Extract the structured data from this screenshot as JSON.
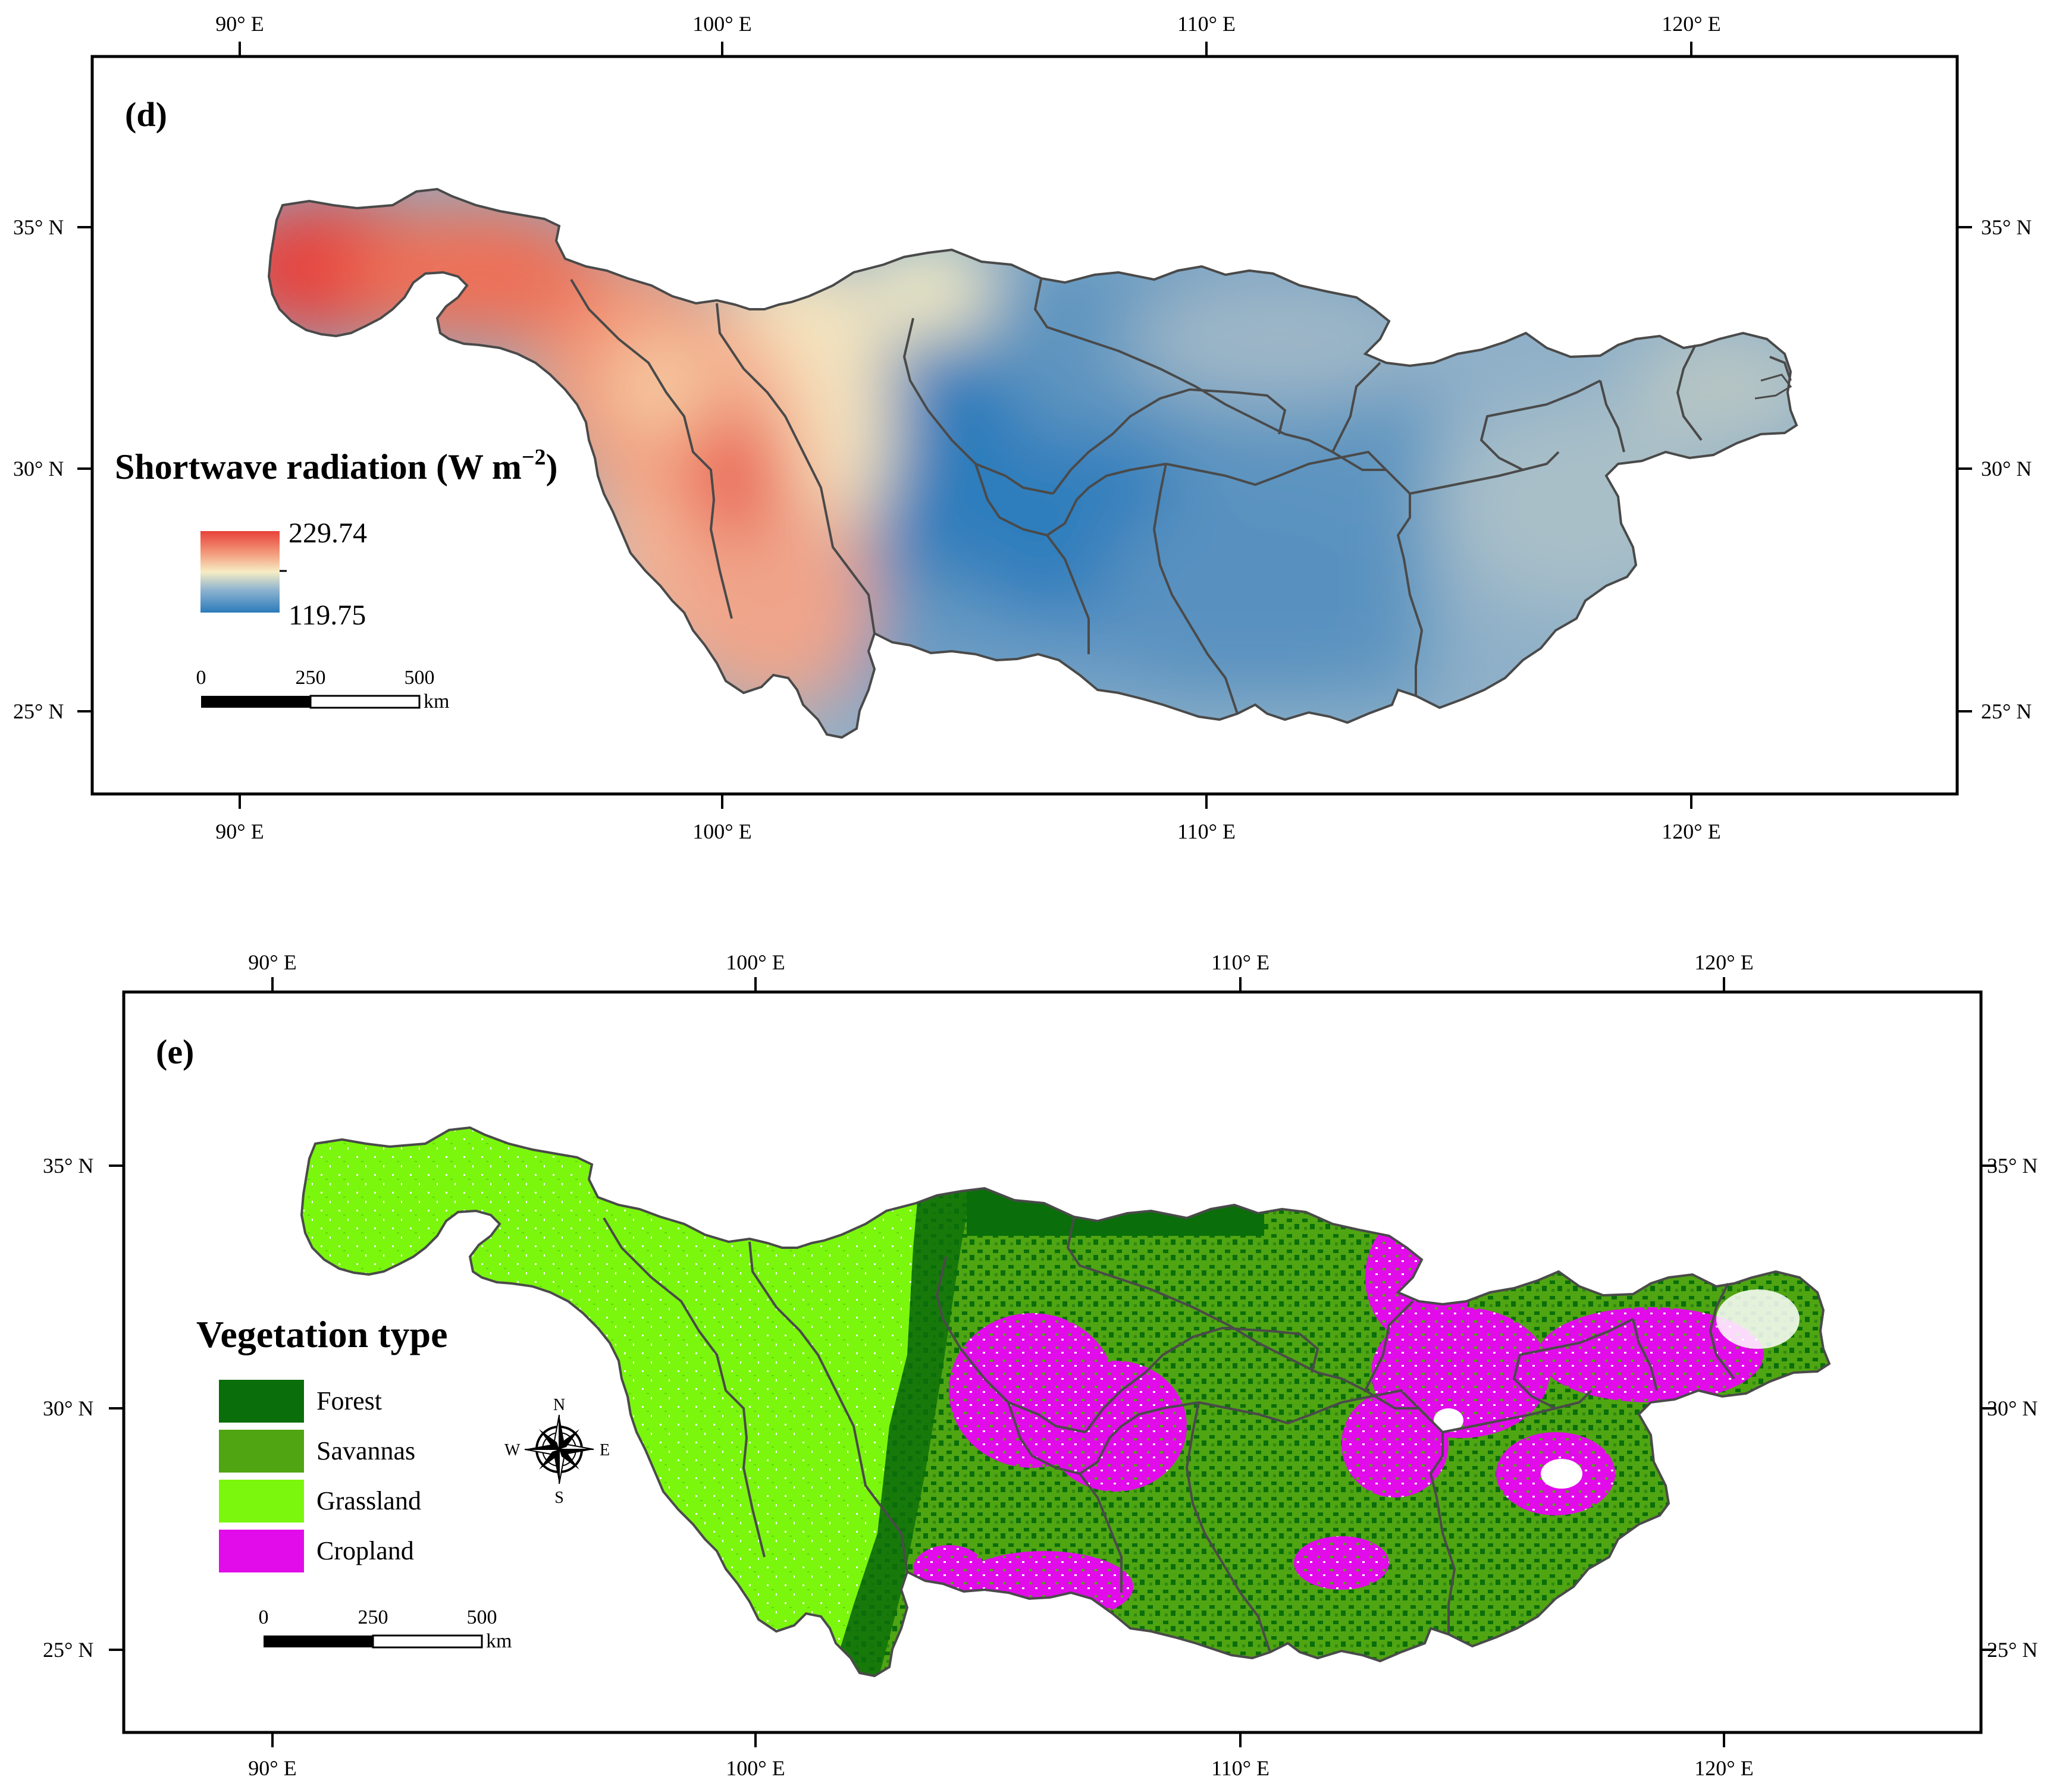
{
  "colors": {
    "sw_high": "#e8413a",
    "sw_mid": "#f6edc4",
    "sw_low": "#2b7bbb",
    "forest": "#0a6e0a",
    "savannas": "#4fa512",
    "grassland": "#7af70c",
    "cropland": "#e10ce9",
    "basin_outline": "#4a4a4a"
  },
  "coordinate_labels": {
    "lon": [
      "90° E",
      "100° E",
      "110° E",
      "120° E"
    ],
    "lat": [
      "35° N",
      "30° N",
      "25° N"
    ]
  },
  "panel_d": {
    "label": "(d)",
    "legend_title": "Shortwave radiation (W m",
    "legend_title_sup": "−2",
    "legend_title_close": ")",
    "legend_max": "229.74",
    "legend_min": "119.75",
    "scale_ticks": [
      "0",
      "250",
      "500"
    ],
    "scale_unit": "km"
  },
  "panel_e": {
    "label": "(e)",
    "legend_title": "Vegetation type",
    "legend_items": [
      {
        "name": "Forest",
        "color": "#0a6e0a"
      },
      {
        "name": "Savannas",
        "color": "#4fa512"
      },
      {
        "name": "Grassland",
        "color": "#7af70c"
      },
      {
        "name": "Cropland",
        "color": "#e10ce9"
      }
    ],
    "compass": {
      "n": "N",
      "s": "S",
      "e": "E",
      "w": "W"
    },
    "scale_ticks": [
      "0",
      "250",
      "500"
    ],
    "scale_unit": "km"
  }
}
